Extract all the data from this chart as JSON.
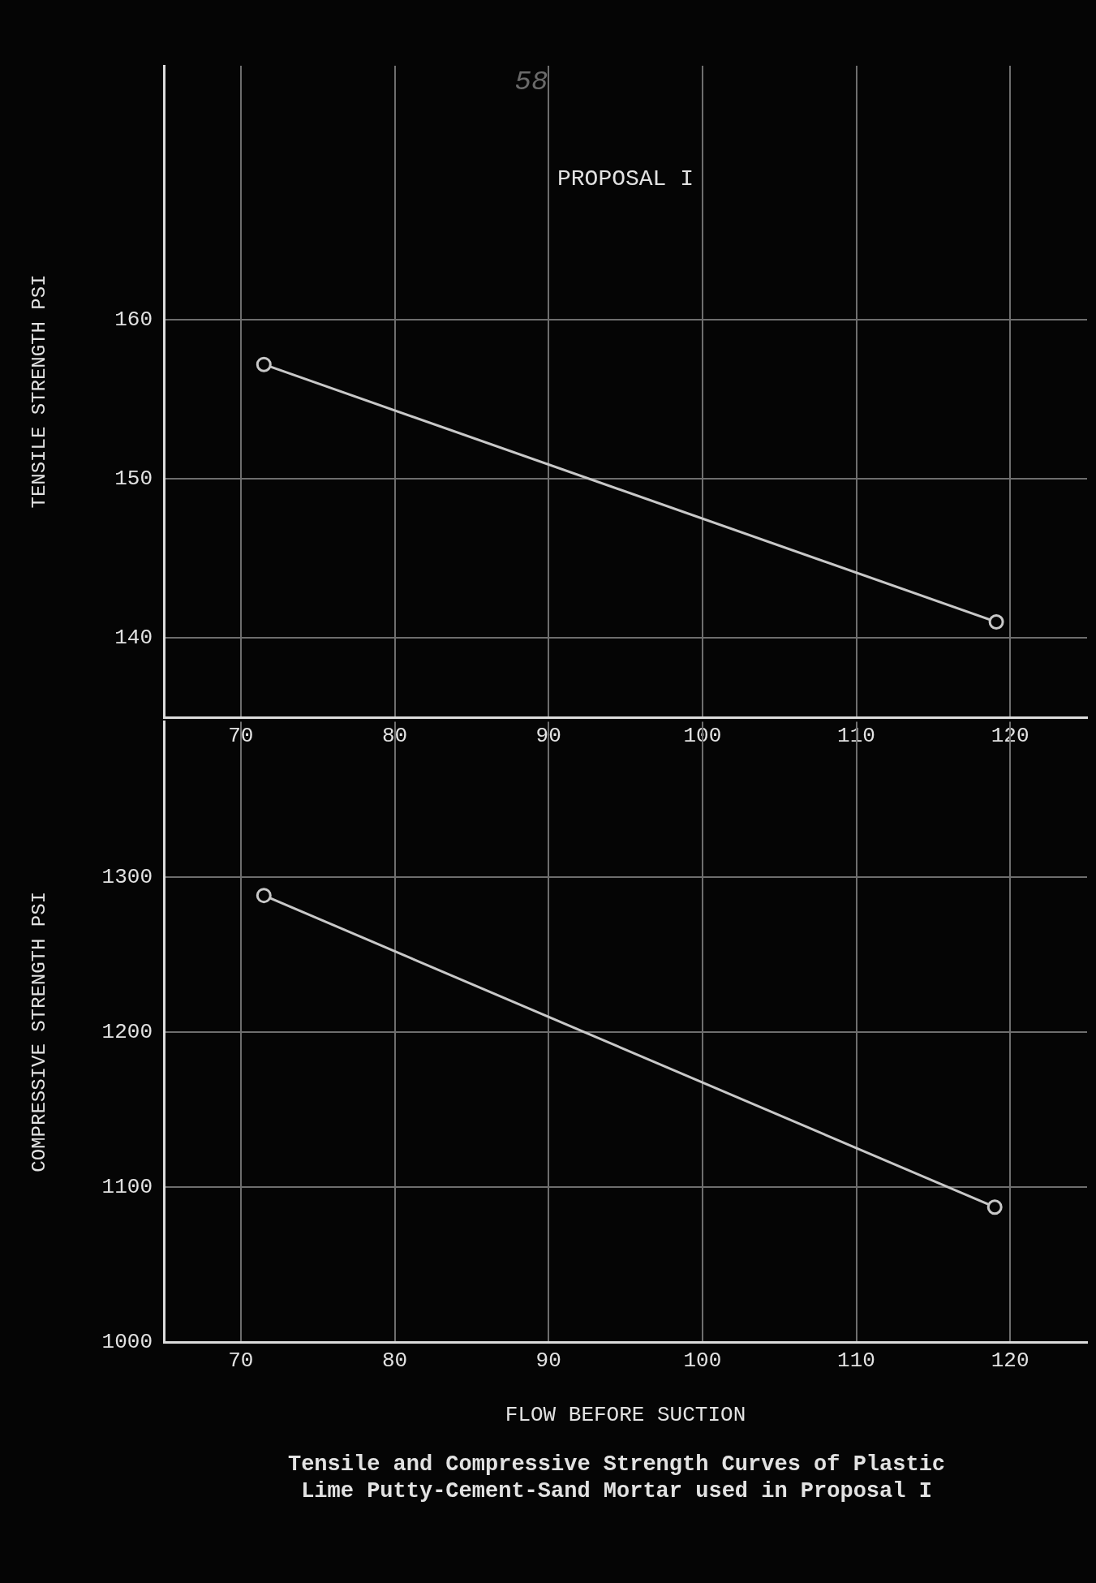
{
  "chart_data": [
    {
      "type": "line",
      "title": "PROPOSAL I",
      "ylabel": "TENSILE STRENGTH PSI",
      "annotations": [
        "58"
      ],
      "x": [
        71.5,
        119.1
      ],
      "series": [
        {
          "color": "#c8c8c8",
          "values": [
            157.2,
            141.0
          ]
        }
      ],
      "xlim": [
        65,
        125
      ],
      "xticks": [
        70,
        80,
        90,
        100,
        110,
        120
      ],
      "ylim": [
        135,
        176
      ],
      "yticks": [
        140,
        150,
        160
      ],
      "grid": true,
      "legend": false,
      "marker": "circle",
      "line_style": "solid"
    },
    {
      "type": "line",
      "xlabel": "FLOW BEFORE SUCTION",
      "ylabel": "COMPRESSIVE STRENGTH PSI",
      "annotations": [
        "Tensile and Compressive Strength Curves of Plastic",
        "Lime Putty-Cement-Sand Mortar used in Proposal I"
      ],
      "x": [
        71.5,
        119
      ],
      "series": [
        {
          "color": "#c8c8c8",
          "values": [
            1288,
            1087
          ]
        }
      ],
      "xlim": [
        65,
        125
      ],
      "xticks": [
        70,
        80,
        90,
        100,
        110,
        120
      ],
      "ylim": [
        1000,
        1400
      ],
      "yticks": [
        1000,
        1100,
        1200,
        1300
      ],
      "grid": true,
      "legend": false,
      "marker": "circle",
      "line_style": "solid"
    }
  ]
}
